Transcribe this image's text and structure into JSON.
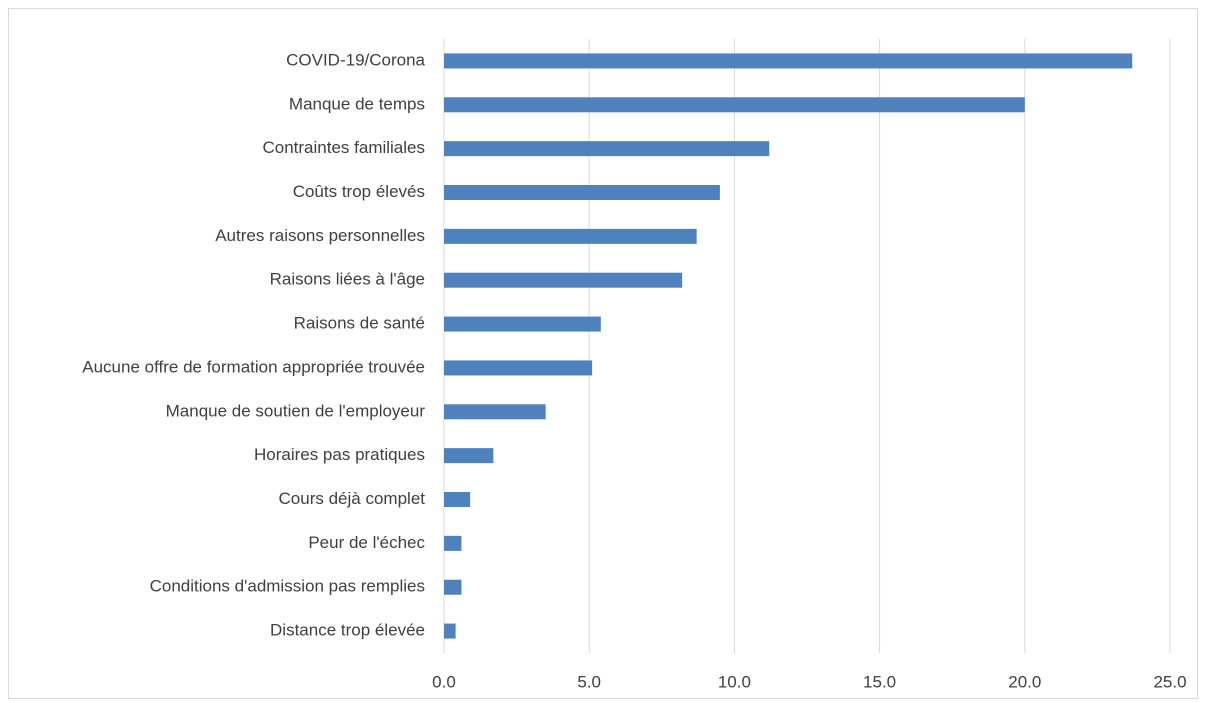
{
  "chart_data": {
    "type": "bar",
    "orientation": "horizontal",
    "categories": [
      "COVID-19/Corona",
      "Manque de temps",
      "Contraintes familiales",
      "Coûts trop élevés",
      "Autres raisons personnelles",
      "Raisons liées à l'âge",
      "Raisons de santé",
      "Aucune offre de formation appropriée trouvée",
      "Manque de soutien de l'employeur",
      "Horaires pas pratiques",
      "Cours déjà complet",
      "Peur de l'échec",
      "Conditions d'admission pas remplies",
      "Distance trop élevée"
    ],
    "values": [
      23.7,
      20.0,
      11.2,
      9.5,
      8.7,
      8.2,
      5.4,
      5.1,
      3.5,
      1.7,
      0.9,
      0.6,
      0.6,
      0.4
    ],
    "color": "#4f81bd",
    "xlim": [
      0,
      25
    ],
    "xticks": [
      {
        "value": 0,
        "label": "0.0"
      },
      {
        "value": 5,
        "label": "5.0"
      },
      {
        "value": 10,
        "label": "10.0"
      },
      {
        "value": 15,
        "label": "15.0"
      },
      {
        "value": 20,
        "label": "20.0"
      },
      {
        "value": 25,
        "label": "25.0"
      }
    ],
    "grid": true
  }
}
